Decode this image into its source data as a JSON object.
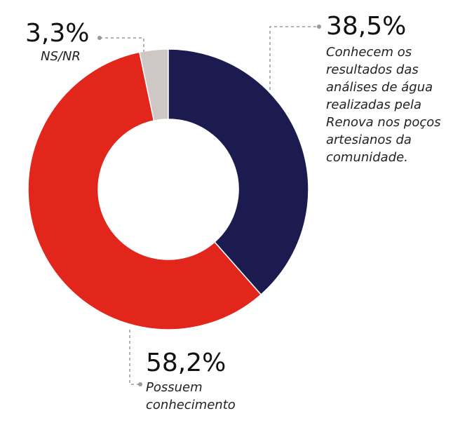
{
  "chart_data": {
    "type": "donut",
    "categories": [
      "Conhecem os resultados das análises de água realizadas pela Renova nos poços artesianos da comunidade.",
      "Possuem conhecimento",
      "NS/NR"
    ],
    "values": [
      38.5,
      58.2,
      3.3
    ],
    "value_labels": [
      "38,5%",
      "58,2%",
      "3,3%"
    ],
    "colors": [
      "#1b1b4f",
      "#e2261c",
      "#cec7c5"
    ]
  }
}
